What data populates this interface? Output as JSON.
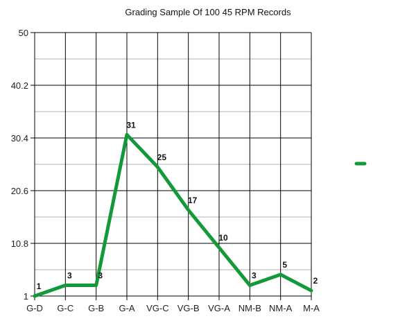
{
  "chart_data": {
    "type": "line",
    "title": "Grading Sample Of 100 45 RPM Records",
    "xlabel": "",
    "ylabel": "",
    "categories": [
      "G-D",
      "G-C",
      "G-B",
      "G-A",
      "VG-C",
      "VG-B",
      "VG-A",
      "NM-B",
      "NM-A",
      "M-A"
    ],
    "series": [
      {
        "name": "",
        "values": [
          1,
          3,
          3,
          31,
          25,
          17,
          10,
          3,
          5,
          2
        ],
        "color": "#14993a"
      }
    ],
    "ylim": [
      1,
      50
    ],
    "yticks": [
      "1",
      "10.8",
      "20.6",
      "30.4",
      "40.2",
      "50"
    ],
    "grid": true,
    "legend_position": "right",
    "data_labels": true
  }
}
